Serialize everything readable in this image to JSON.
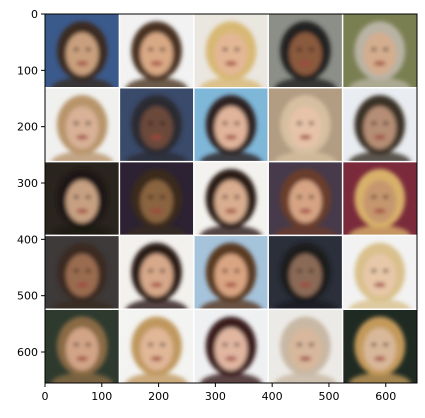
{
  "figure": {
    "x_ticks": [
      "0",
      "100",
      "200",
      "300",
      "400",
      "500",
      "600"
    ],
    "y_ticks": [
      "0",
      "100",
      "200",
      "300",
      "400",
      "500",
      "600"
    ],
    "grid_rows": 5,
    "grid_cols": 5,
    "content": "generated face samples"
  },
  "chart_data": {
    "type": "heatmap",
    "xlim": [
      0,
      655
    ],
    "ylim": [
      655,
      0
    ],
    "xticks": [
      0,
      100,
      200,
      300,
      400,
      500,
      600
    ],
    "yticks": [
      0,
      100,
      200,
      300,
      400,
      500,
      600
    ],
    "grid": false
  },
  "tiles": [
    {
      "bg": "#3b5a8c",
      "face": "#c9a07e",
      "hair": "#3a2a20"
    },
    {
      "bg": "#f2f2f2",
      "face": "#d9a985",
      "hair": "#4a3322"
    },
    {
      "bg": "#eae6e0",
      "face": "#e3b795",
      "hair": "#d8b874"
    },
    {
      "bg": "#8c8f88",
      "face": "#8a5a3c",
      "hair": "#202020"
    },
    {
      "bg": "#7a7f52",
      "face": "#d4ad8e",
      "hair": "#b9b3a4"
    },
    {
      "bg": "#f0f0ee",
      "face": "#d8b196",
      "hair": "#b8946a"
    },
    {
      "bg": "#3a4a6a",
      "face": "#6a4a3a",
      "hair": "#2a2a33"
    },
    {
      "bg": "#7fb7d8",
      "face": "#e0b49a",
      "hair": "#2d2220"
    },
    {
      "bg": "#b29c82",
      "face": "#e6c3a8",
      "hair": "#d6bfa0"
    },
    {
      "bg": "#e9ecf0",
      "face": "#b58e74",
      "hair": "#3a3028"
    },
    {
      "bg": "#2a241e",
      "face": "#c7a082",
      "hair": "#1a1512"
    },
    {
      "bg": "#2c2233",
      "face": "#8a6440",
      "hair": "#3a2a1e"
    },
    {
      "bg": "#f4f2ee",
      "face": "#d9ad90",
      "hair": "#2a1c16"
    },
    {
      "bg": "#473a4a",
      "face": "#d6a484",
      "hair": "#6a3c2a"
    },
    {
      "bg": "#7a2a3a",
      "face": "#c6966e",
      "hair": "#d8b06a"
    },
    {
      "bg": "#3e3a3a",
      "face": "#9a6c50",
      "hair": "#3a2a22"
    },
    {
      "bg": "#f3f1ee",
      "face": "#d7a88a",
      "hair": "#2b1b16"
    },
    {
      "bg": "#a6c3dc",
      "face": "#d9a482",
      "hair": "#5a3a22"
    },
    {
      "bg": "#2a2f3a",
      "face": "#8a6a56",
      "hair": "#1a1a1e"
    },
    {
      "bg": "#f2f2f2",
      "face": "#e7c7a8",
      "hair": "#d9c08c"
    },
    {
      "bg": "#2e3a2e",
      "face": "#d2a487",
      "hair": "#8a6a44"
    },
    {
      "bg": "#f3f3f1",
      "face": "#e0b797",
      "hair": "#c0985e"
    },
    {
      "bg": "#eef0f2",
      "face": "#e0b6a0",
      "hair": "#3a1a1a"
    },
    {
      "bg": "#eceae6",
      "face": "#d8b89c",
      "hair": "#c8b8a4"
    },
    {
      "bg": "#1f2a22",
      "face": "#d9b89a",
      "hair": "#c49a5a"
    }
  ]
}
